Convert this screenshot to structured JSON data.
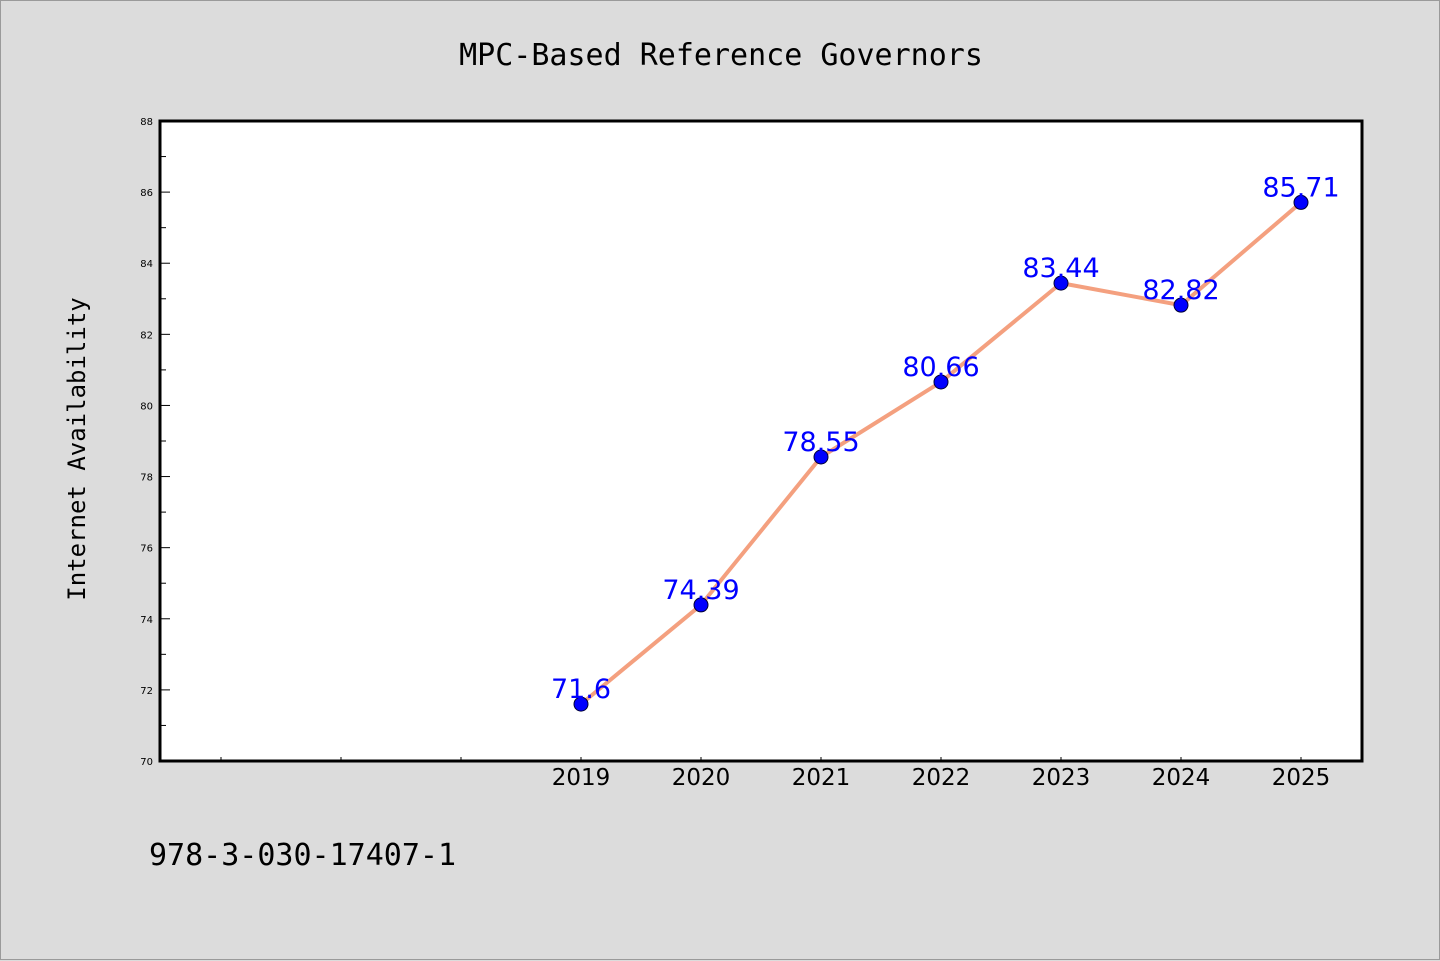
{
  "chart_data": {
    "type": "line",
    "title": "MPC-Based Reference Governors",
    "xlabel": "",
    "ylabel": "Internet Availability",
    "categories": [
      "2019",
      "2020",
      "2021",
      "2022",
      "2023",
      "2024",
      "2025"
    ],
    "values": [
      71.6,
      74.39,
      78.55,
      80.66,
      83.44,
      82.82,
      85.71
    ],
    "data_labels": [
      "71.6",
      "74.39",
      "78.55",
      "80.66",
      "83.44",
      "82.82",
      "85.71"
    ],
    "ylim": [
      70,
      88
    ],
    "yticks": [
      "70",
      "72",
      "74",
      "76",
      "78",
      "80",
      "82",
      "84",
      "86",
      "88"
    ],
    "grid": false,
    "line_color": "#f4a07f",
    "marker_color": "#0000ff",
    "label_color": "#0000ff"
  },
  "footer": {
    "isbn": "978-3-030-17407-1"
  }
}
